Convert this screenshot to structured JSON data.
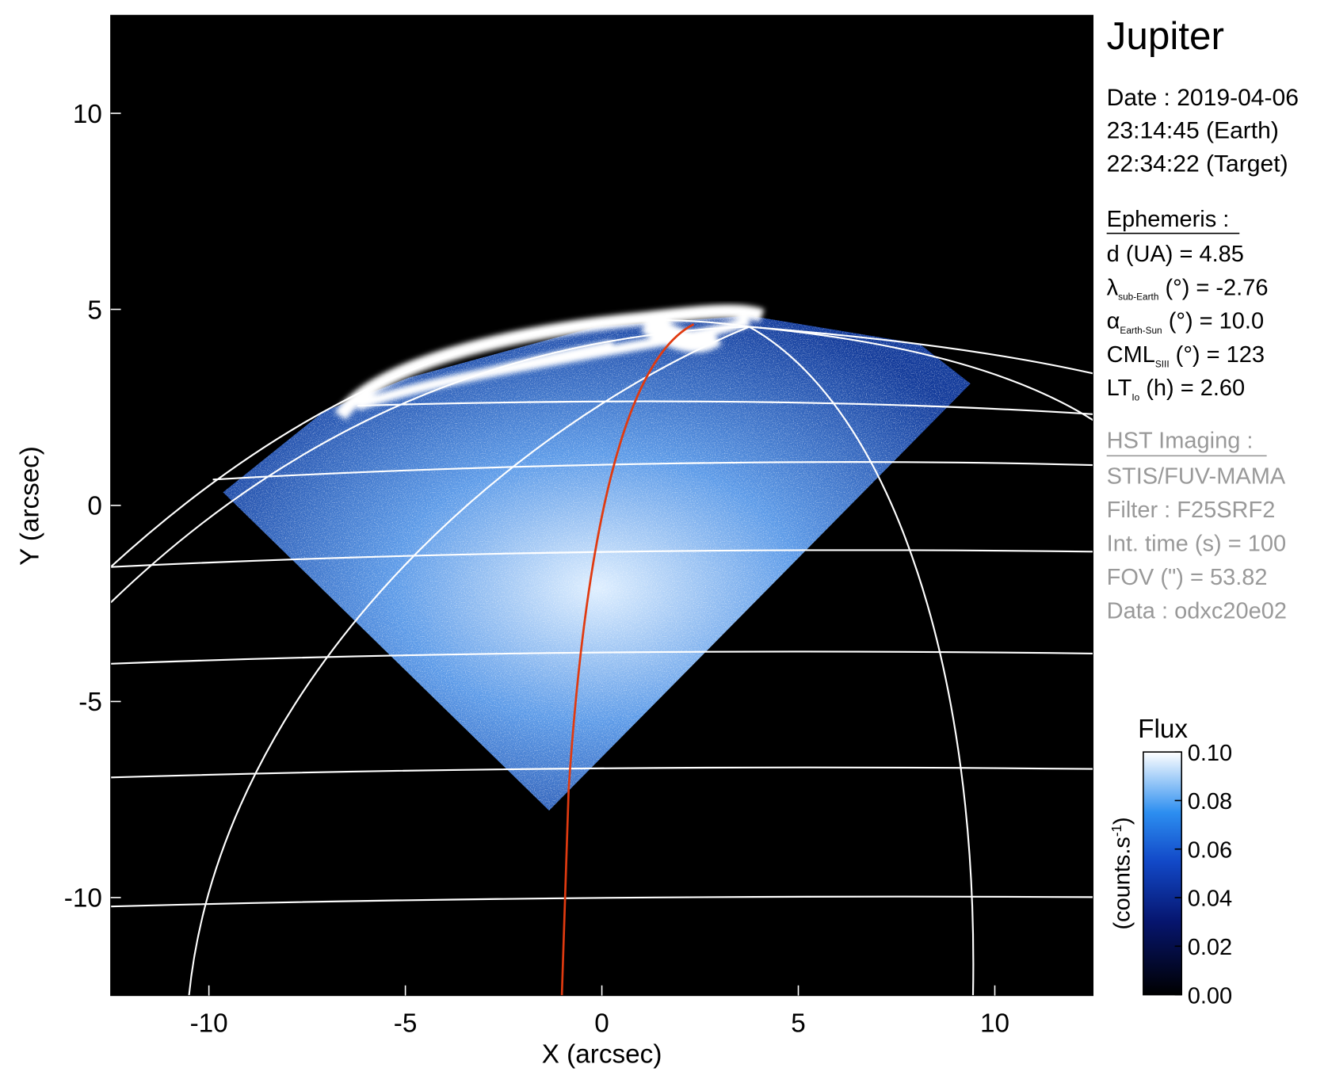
{
  "chart_data": {
    "type": "image",
    "xlabel": "X (arcsec)",
    "ylabel": "Y (arcsec)",
    "xlim": [
      -12.5,
      12.5
    ],
    "ylim": [
      -12.5,
      12.5
    ],
    "xticks": [
      -10,
      -5,
      0,
      5,
      10
    ],
    "yticks": [
      -10,
      -5,
      0,
      5,
      10
    ],
    "colorbar": {
      "title": "Flux",
      "label": "(counts.s",
      "label_sup": "-1",
      "label_end": ")",
      "lim": [
        0,
        0.1
      ],
      "ticks": [
        {
          "value": 0,
          "label": "0.00"
        },
        {
          "value": 0.02,
          "label": "0.02"
        },
        {
          "value": 0.04,
          "label": "0.04"
        },
        {
          "value": 0.06,
          "label": "0.06"
        },
        {
          "value": 0.08,
          "label": "0.08"
        },
        {
          "value": 0.1,
          "label": "0.10"
        }
      ]
    }
  },
  "info": {
    "title": "Jupiter",
    "date_lines": [
      "Date : 2019-04-06",
      "23:14:45 (Earth)",
      "22:34:22 (Target)"
    ],
    "ephemeris_heading": "Ephemeris :",
    "ephemeris": [
      {
        "text": "d (UA)    = 4.85"
      },
      {
        "symbol": "λ",
        "sub": "sub-Earth",
        "rest": " (°) = -2.76"
      },
      {
        "symbol": "α",
        "sub": "Earth-Sun",
        "rest": " (°) = 10.0"
      },
      {
        "symbol": "CML",
        "sub": "SIII",
        "rest": " (°) = 123"
      },
      {
        "symbol": "LT",
        "sub": "Io",
        "rest": " (h) = 2.60"
      }
    ],
    "hst_heading": "HST Imaging :",
    "hst": [
      "STIS/FUV-MAMA",
      "Filter : F25SRF2",
      "Int. time (s) = 100",
      "FOV (\") = 53.82",
      "Data : odxc20e02"
    ]
  }
}
